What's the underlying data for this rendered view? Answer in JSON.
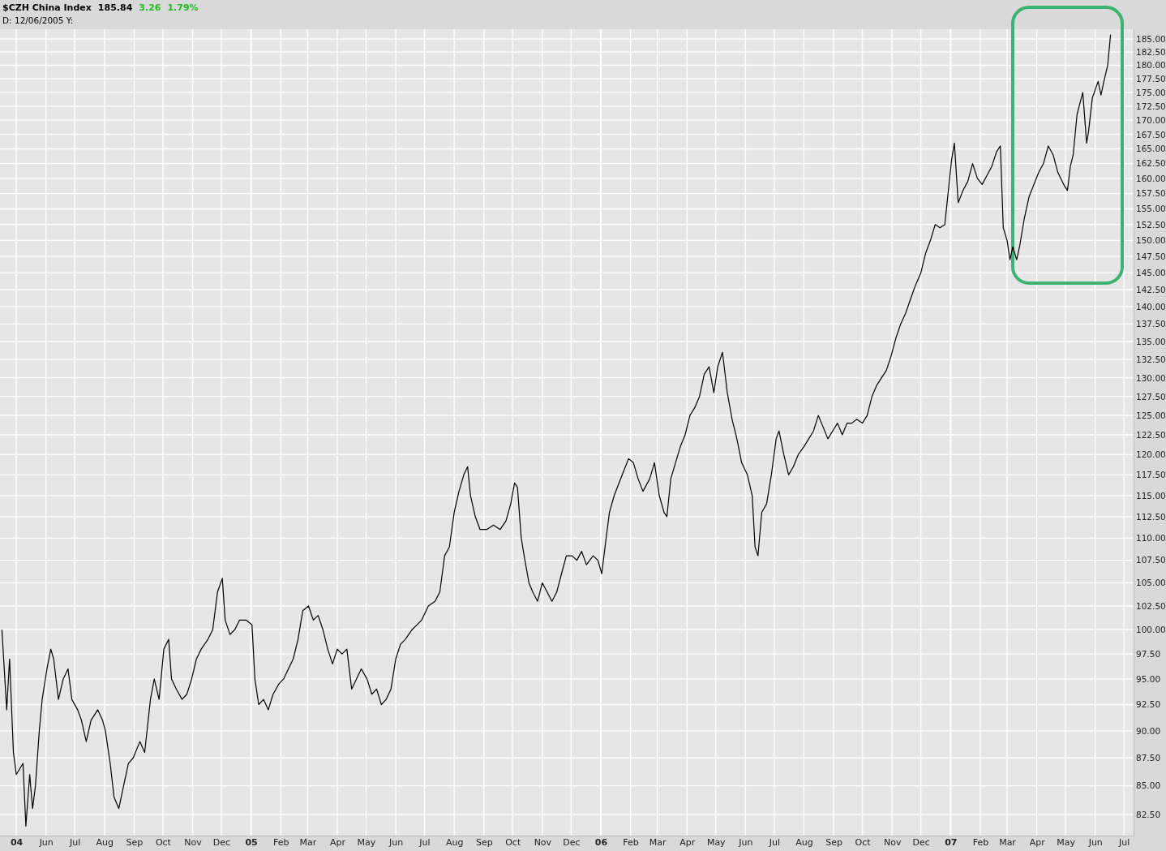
{
  "chart_data": {
    "type": "line",
    "title": "$CZH China Index",
    "annotations": [
      "185.84",
      "3.26",
      "1.79%",
      "D: 12/06/2005 Y:"
    ],
    "x": [
      "2004-04-16",
      "2004-04-21",
      "2004-04-24",
      "2004-04-28",
      "2004-05-01",
      "2004-05-08",
      "2004-05-11",
      "2004-05-15",
      "2004-05-18",
      "2004-05-21",
      "2004-05-25",
      "2004-05-28",
      "2004-06-02",
      "2004-06-06",
      "2004-06-09",
      "2004-06-14",
      "2004-06-19",
      "2004-06-24",
      "2004-06-28",
      "2004-07-04",
      "2004-07-08",
      "2004-07-13",
      "2004-07-18",
      "2004-07-25",
      "2004-07-30",
      "2004-08-02",
      "2004-08-07",
      "2004-08-11",
      "2004-08-16",
      "2004-08-21",
      "2004-08-26",
      "2004-08-31",
      "2004-09-07",
      "2004-09-12",
      "2004-09-18",
      "2004-09-22",
      "2004-09-27",
      "2004-10-02",
      "2004-10-07",
      "2004-10-10",
      "2004-10-15",
      "2004-10-21",
      "2004-10-26",
      "2004-10-31",
      "2004-11-05",
      "2004-11-10",
      "2004-11-17",
      "2004-11-22",
      "2004-11-27",
      "2004-12-02",
      "2004-12-05",
      "2004-12-10",
      "2004-12-15",
      "2004-12-20",
      "2004-12-27",
      "2005-01-02",
      "2005-01-05",
      "2005-01-09",
      "2005-01-14",
      "2005-01-19",
      "2005-01-24",
      "2005-01-30",
      "2005-02-04",
      "2005-02-09",
      "2005-02-14",
      "2005-02-19",
      "2005-02-24",
      "2005-03-02",
      "2005-03-07",
      "2005-03-12",
      "2005-03-17",
      "2005-03-22",
      "2005-03-27",
      "2005-04-01",
      "2005-04-06",
      "2005-04-11",
      "2005-04-16",
      "2005-04-21",
      "2005-04-26",
      "2005-05-02",
      "2005-05-07",
      "2005-05-12",
      "2005-05-17",
      "2005-05-22",
      "2005-05-27",
      "2005-06-01",
      "2005-06-06",
      "2005-06-11",
      "2005-06-18",
      "2005-06-23",
      "2005-06-28",
      "2005-07-05",
      "2005-07-12",
      "2005-07-17",
      "2005-07-22",
      "2005-07-27",
      "2005-08-01",
      "2005-08-06",
      "2005-08-11",
      "2005-08-15",
      "2005-08-18",
      "2005-08-23",
      "2005-08-28",
      "2005-09-04",
      "2005-09-11",
      "2005-09-18",
      "2005-09-24",
      "2005-09-29",
      "2005-10-03",
      "2005-10-06",
      "2005-10-10",
      "2005-10-13",
      "2005-10-18",
      "2005-10-22",
      "2005-10-27",
      "2005-11-01",
      "2005-11-06",
      "2005-11-11",
      "2005-11-16",
      "2005-11-21",
      "2005-11-26",
      "2005-12-02",
      "2005-12-07",
      "2005-12-12",
      "2005-12-17",
      "2005-12-24",
      "2005-12-29",
      "2006-01-02",
      "2006-01-06",
      "2006-01-10",
      "2006-01-15",
      "2006-01-20",
      "2006-01-25",
      "2006-01-30",
      "2006-02-04",
      "2006-02-09",
      "2006-02-14",
      "2006-02-21",
      "2006-02-26",
      "2006-03-03",
      "2006-03-08",
      "2006-03-11",
      "2006-03-15",
      "2006-03-20",
      "2006-03-25",
      "2006-03-30",
      "2006-04-04",
      "2006-04-09",
      "2006-04-14",
      "2006-04-19",
      "2006-04-24",
      "2006-04-29",
      "2006-05-03",
      "2006-05-08",
      "2006-05-13",
      "2006-05-18",
      "2006-05-23",
      "2006-05-28",
      "2006-06-03",
      "2006-06-08",
      "2006-06-11",
      "2006-06-14",
      "2006-06-18",
      "2006-06-23",
      "2006-06-28",
      "2006-07-03",
      "2006-07-06",
      "2006-07-11",
      "2006-07-16",
      "2006-07-21",
      "2006-07-26",
      "2006-08-01",
      "2006-08-06",
      "2006-08-11",
      "2006-08-16",
      "2006-08-21",
      "2006-08-26",
      "2006-08-31",
      "2006-09-05",
      "2006-09-10",
      "2006-09-15",
      "2006-09-20",
      "2006-09-25",
      "2006-10-01",
      "2006-10-06",
      "2006-10-11",
      "2006-10-16",
      "2006-10-21",
      "2006-10-26",
      "2006-10-31",
      "2006-11-05",
      "2006-11-10",
      "2006-11-15",
      "2006-11-20",
      "2006-11-25",
      "2006-12-01",
      "2006-12-06",
      "2006-12-11",
      "2006-12-16",
      "2006-12-21",
      "2006-12-26",
      "2007-01-02",
      "2007-01-05",
      "2007-01-09",
      "2007-01-14",
      "2007-01-19",
      "2007-01-24",
      "2007-01-29",
      "2007-02-03",
      "2007-02-08",
      "2007-02-13",
      "2007-02-18",
      "2007-02-22",
      "2007-02-25",
      "2007-03-01",
      "2007-03-04",
      "2007-03-07",
      "2007-03-11",
      "2007-03-14",
      "2007-03-19",
      "2007-03-24",
      "2007-03-29",
      "2007-04-03",
      "2007-04-08",
      "2007-04-13",
      "2007-04-18",
      "2007-04-23",
      "2007-04-29",
      "2007-05-03",
      "2007-05-06",
      "2007-05-09",
      "2007-05-13",
      "2007-05-16",
      "2007-05-19",
      "2007-05-23",
      "2007-05-25",
      "2007-05-29",
      "2007-06-02",
      "2007-06-04",
      "2007-06-07",
      "2007-06-10",
      "2007-06-14",
      "2007-06-17"
    ],
    "values": [
      100,
      92,
      97,
      88,
      86,
      87,
      81.5,
      86,
      83,
      85,
      90,
      93,
      96,
      98,
      97,
      93,
      95,
      96,
      93,
      92,
      91,
      89,
      91,
      92,
      91,
      90,
      87,
      84,
      83,
      85,
      87,
      87.5,
      89,
      88,
      93,
      95,
      93,
      98,
      99,
      95,
      94,
      93,
      93.5,
      95,
      97,
      98,
      99,
      100,
      104,
      105.5,
      101,
      99.5,
      100,
      101,
      101,
      100.5,
      95,
      92.5,
      93,
      92,
      93.5,
      94.5,
      95,
      96,
      97,
      99,
      102,
      102.5,
      101,
      101.5,
      100,
      98,
      96.5,
      98,
      97.5,
      98,
      94,
      95,
      96,
      95,
      93.5,
      94,
      92.5,
      93,
      94,
      97,
      98.5,
      99,
      100,
      100.5,
      101,
      102.5,
      103,
      104,
      108,
      109,
      113,
      115.5,
      117.5,
      118.5,
      115,
      112.5,
      111,
      111,
      111.5,
      111,
      112,
      114,
      116.5,
      116,
      110,
      108,
      105,
      104,
      103,
      105,
      104,
      103,
      104,
      106,
      108,
      108,
      107.5,
      108.5,
      107,
      108,
      107.5,
      106,
      109.5,
      113,
      115,
      116.5,
      118,
      119.5,
      119,
      117,
      115.5,
      117,
      119,
      115,
      113,
      112.5,
      117,
      119,
      121,
      122.5,
      125,
      126,
      127.5,
      130.5,
      131.5,
      128,
      131.5,
      133.5,
      128,
      124.5,
      122,
      119,
      117.5,
      115,
      109,
      108,
      113,
      114,
      117.5,
      122,
      123,
      120,
      117.5,
      118.5,
      120,
      121,
      122,
      123,
      125,
      123.5,
      122,
      123,
      124,
      122.5,
      124,
      124,
      124.5,
      124,
      125,
      127.5,
      129,
      130,
      131,
      133,
      135.5,
      137.5,
      139,
      141,
      143,
      145,
      148,
      150,
      152.5,
      152,
      152.5,
      163,
      166,
      156,
      158,
      159.5,
      162.5,
      160,
      159,
      160.5,
      162,
      164.5,
      165.5,
      152,
      150,
      147,
      149,
      147,
      149,
      153.5,
      157,
      159,
      161,
      162.5,
      165.5,
      164,
      161,
      159,
      158,
      162,
      164,
      171,
      173,
      175,
      166,
      168,
      174,
      176,
      177,
      174.5,
      177,
      180,
      185.84
    ],
    "color": "#000000",
    "xlim": [
      "2004-04-14",
      "2007-07-11"
    ],
    "xticks": [
      {
        "value": "2004-05-01",
        "label": "04"
      },
      {
        "value": "2004-06-01",
        "label": "Jun"
      },
      {
        "value": "2004-07-01",
        "label": "Jul"
      },
      {
        "value": "2004-08-01",
        "label": "Aug"
      },
      {
        "value": "2004-09-01",
        "label": "Sep"
      },
      {
        "value": "2004-10-01",
        "label": "Oct"
      },
      {
        "value": "2004-11-01",
        "label": "Nov"
      },
      {
        "value": "2004-12-01",
        "label": "Dec"
      },
      {
        "value": "2005-01-01",
        "label": "05"
      },
      {
        "value": "2005-02-01",
        "label": "Feb"
      },
      {
        "value": "2005-03-01",
        "label": "Mar"
      },
      {
        "value": "2005-04-01",
        "label": "Apr"
      },
      {
        "value": "2005-05-01",
        "label": "May"
      },
      {
        "value": "2005-06-01",
        "label": "Jun"
      },
      {
        "value": "2005-07-01",
        "label": "Jul"
      },
      {
        "value": "2005-08-01",
        "label": "Aug"
      },
      {
        "value": "2005-09-01",
        "label": "Sep"
      },
      {
        "value": "2005-10-01",
        "label": "Oct"
      },
      {
        "value": "2005-11-01",
        "label": "Nov"
      },
      {
        "value": "2005-12-01",
        "label": "Dec"
      },
      {
        "value": "2006-01-01",
        "label": "06"
      },
      {
        "value": "2006-02-01",
        "label": "Feb"
      },
      {
        "value": "2006-03-01",
        "label": "Mar"
      },
      {
        "value": "2006-04-01",
        "label": "Apr"
      },
      {
        "value": "2006-05-01",
        "label": "May"
      },
      {
        "value": "2006-06-01",
        "label": "Jun"
      },
      {
        "value": "2006-07-01",
        "label": "Jul"
      },
      {
        "value": "2006-08-01",
        "label": "Aug"
      },
      {
        "value": "2006-09-01",
        "label": "Sep"
      },
      {
        "value": "2006-10-01",
        "label": "Oct"
      },
      {
        "value": "2006-11-01",
        "label": "Nov"
      },
      {
        "value": "2006-12-01",
        "label": "Dec"
      },
      {
        "value": "2007-01-01",
        "label": "07"
      },
      {
        "value": "2007-02-01",
        "label": "Feb"
      },
      {
        "value": "2007-03-01",
        "label": "Mar"
      },
      {
        "value": "2007-04-01",
        "label": "Apr"
      },
      {
        "value": "2007-05-01",
        "label": "May"
      },
      {
        "value": "2007-06-01",
        "label": "Jun"
      },
      {
        "value": "2007-07-01",
        "label": "Jul"
      }
    ],
    "ylim": [
      80.7,
      186.9
    ],
    "yticks": [
      {
        "value": 82.5,
        "label": "82.50"
      },
      {
        "value": 85,
        "label": "85.00"
      },
      {
        "value": 87.5,
        "label": "87.50"
      },
      {
        "value": 90,
        "label": "90.00"
      },
      {
        "value": 92.5,
        "label": "92.50"
      },
      {
        "value": 95,
        "label": "95.00"
      },
      {
        "value": 97.5,
        "label": "97.50"
      },
      {
        "value": 100,
        "label": "100.00"
      },
      {
        "value": 102.5,
        "label": "102.50"
      },
      {
        "value": 105,
        "label": "105.00"
      },
      {
        "value": 107.5,
        "label": "107.50"
      },
      {
        "value": 110,
        "label": "110.00"
      },
      {
        "value": 112.5,
        "label": "112.50"
      },
      {
        "value": 115,
        "label": "115.00"
      },
      {
        "value": 117.5,
        "label": "117.50"
      },
      {
        "value": 120,
        "label": "120.00"
      },
      {
        "value": 122.5,
        "label": "122.50"
      },
      {
        "value": 125,
        "label": "125.00"
      },
      {
        "value": 127.5,
        "label": "127.50"
      },
      {
        "value": 130,
        "label": "130.00"
      },
      {
        "value": 132.5,
        "label": "132.50"
      },
      {
        "value": 135,
        "label": "135.00"
      },
      {
        "value": 137.5,
        "label": "137.50"
      },
      {
        "value": 140,
        "label": "140.00"
      },
      {
        "value": 142.5,
        "label": "142.50"
      },
      {
        "value": 145,
        "label": "145.00"
      },
      {
        "value": 147.5,
        "label": "147.50"
      },
      {
        "value": 150,
        "label": "150.00"
      },
      {
        "value": 152.5,
        "label": "152.50"
      },
      {
        "value": 155,
        "label": "155.00"
      },
      {
        "value": 157.5,
        "label": "157.50"
      },
      {
        "value": 160,
        "label": "160.00"
      },
      {
        "value": 162.5,
        "label": "162.50"
      },
      {
        "value": 165,
        "label": "165.00"
      },
      {
        "value": 167.5,
        "label": "167.50"
      },
      {
        "value": 170,
        "label": "170.00"
      },
      {
        "value": 172.5,
        "label": "172.50"
      },
      {
        "value": 175,
        "label": "175.00"
      },
      {
        "value": 177.5,
        "label": "177.50"
      },
      {
        "value": 180,
        "label": "180.00"
      },
      {
        "value": 182.5,
        "label": "182.50"
      },
      {
        "value": 185,
        "label": "185.00"
      }
    ],
    "log": "y",
    "grid": true
  }
}
